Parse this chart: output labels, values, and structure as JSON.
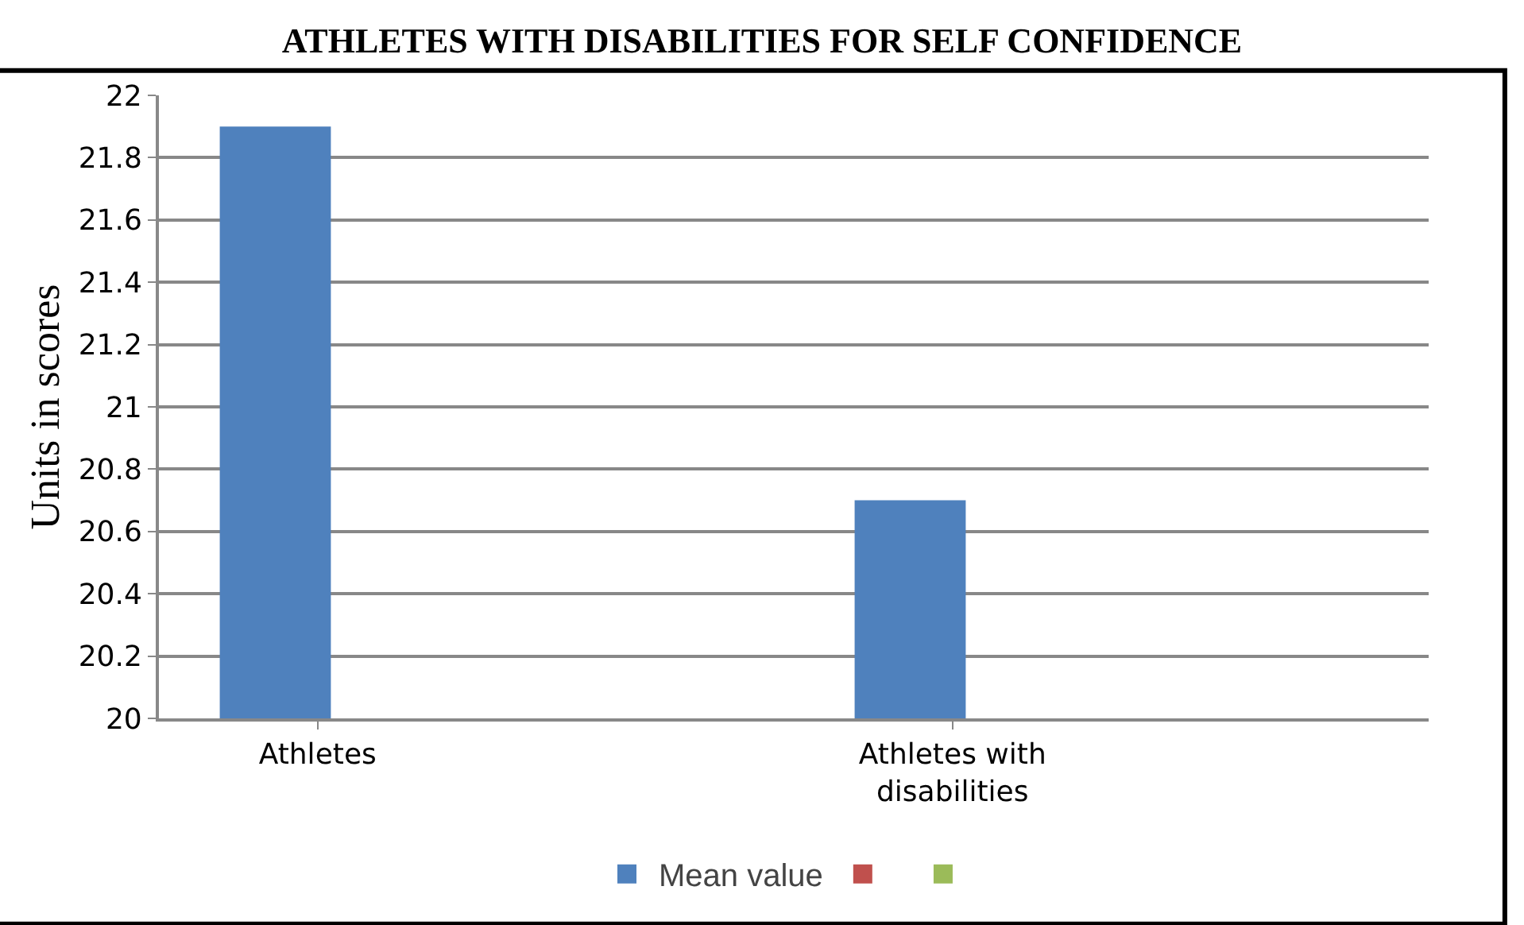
{
  "chart_data": {
    "type": "bar",
    "title": "ATHLETES WITH DISABILITIES FOR SELF CONFIDENCE",
    "ylabel": "Units in scores",
    "categories": [
      "Athletes",
      null,
      "Athletes with disabilities",
      null
    ],
    "series": [
      {
        "name": "Mean value",
        "color": "#4f81bd",
        "values": [
          21.9,
          null,
          20.7,
          null
        ]
      },
      {
        "color": "#c0504d",
        "values": [
          null,
          null,
          null,
          null
        ]
      },
      {
        "color": "#9bbb59",
        "values": [
          null,
          null,
          null,
          null
        ]
      }
    ],
    "ylim": [
      20,
      22
    ],
    "yticks": [
      20,
      20.2,
      20.4,
      20.6,
      20.8,
      21,
      21.2,
      21.4,
      21.6,
      21.8,
      22
    ],
    "grid": "y",
    "legend": "bottom"
  }
}
